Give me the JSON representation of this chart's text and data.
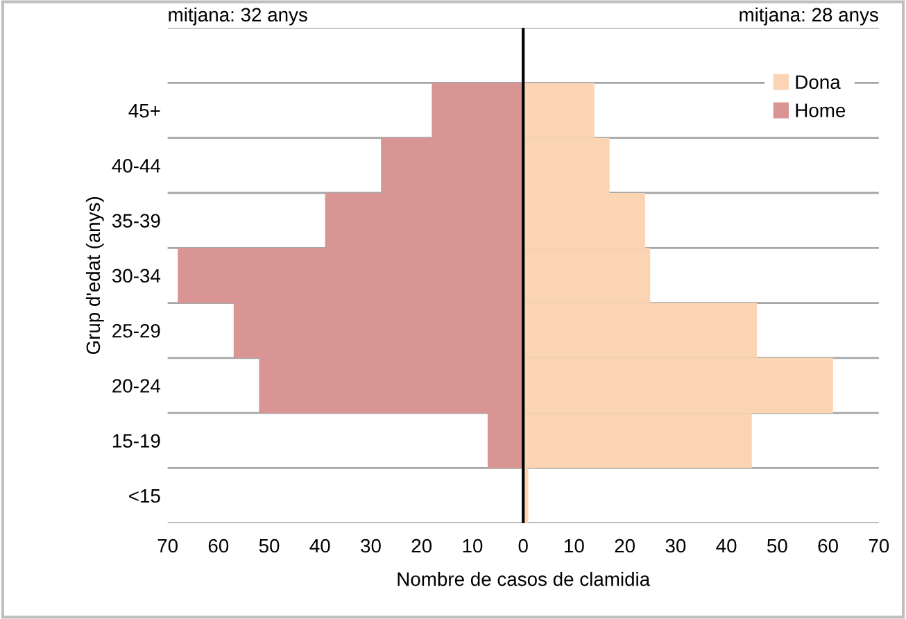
{
  "chart_data": {
    "type": "bar",
    "orientation": "horizontal",
    "stacked": true,
    "categories": [
      null,
      "45+",
      "40-44",
      "35-39",
      "30-34",
      "25-29",
      "20-24",
      "15-19",
      "<15"
    ],
    "series": [
      {
        "name": "Dona",
        "color": "#fbd4b4",
        "values": [
          null,
          14,
          17,
          24,
          25,
          46,
          61,
          45,
          1
        ]
      },
      {
        "name": "Home",
        "color": "#d99594",
        "values": [
          null,
          -18,
          -28,
          -39,
          -68,
          -57,
          -52,
          -7,
          0
        ]
      }
    ],
    "xlim": [
      -70,
      70
    ],
    "xticks": [
      {
        "value": -70,
        "label": "70"
      },
      {
        "value": -60,
        "label": "60"
      },
      {
        "value": -50,
        "label": "50"
      },
      {
        "value": -40,
        "label": "40"
      },
      {
        "value": -30,
        "label": "30"
      },
      {
        "value": -20,
        "label": "20"
      },
      {
        "value": -10,
        "label": "10"
      },
      0,
      10,
      20,
      30,
      40,
      50,
      60,
      70
    ],
    "xlabel": "Nombre de casos de clamidia",
    "ylabel": "Grup d'edat (anys)",
    "ref_lines": [
      {
        "axis": "x",
        "value": 0,
        "color": "#000000"
      }
    ],
    "annotations": [
      "mitjana: 32 anys",
      "mitjana: 28 anys"
    ],
    "grid": "y",
    "legend": "top right"
  }
}
